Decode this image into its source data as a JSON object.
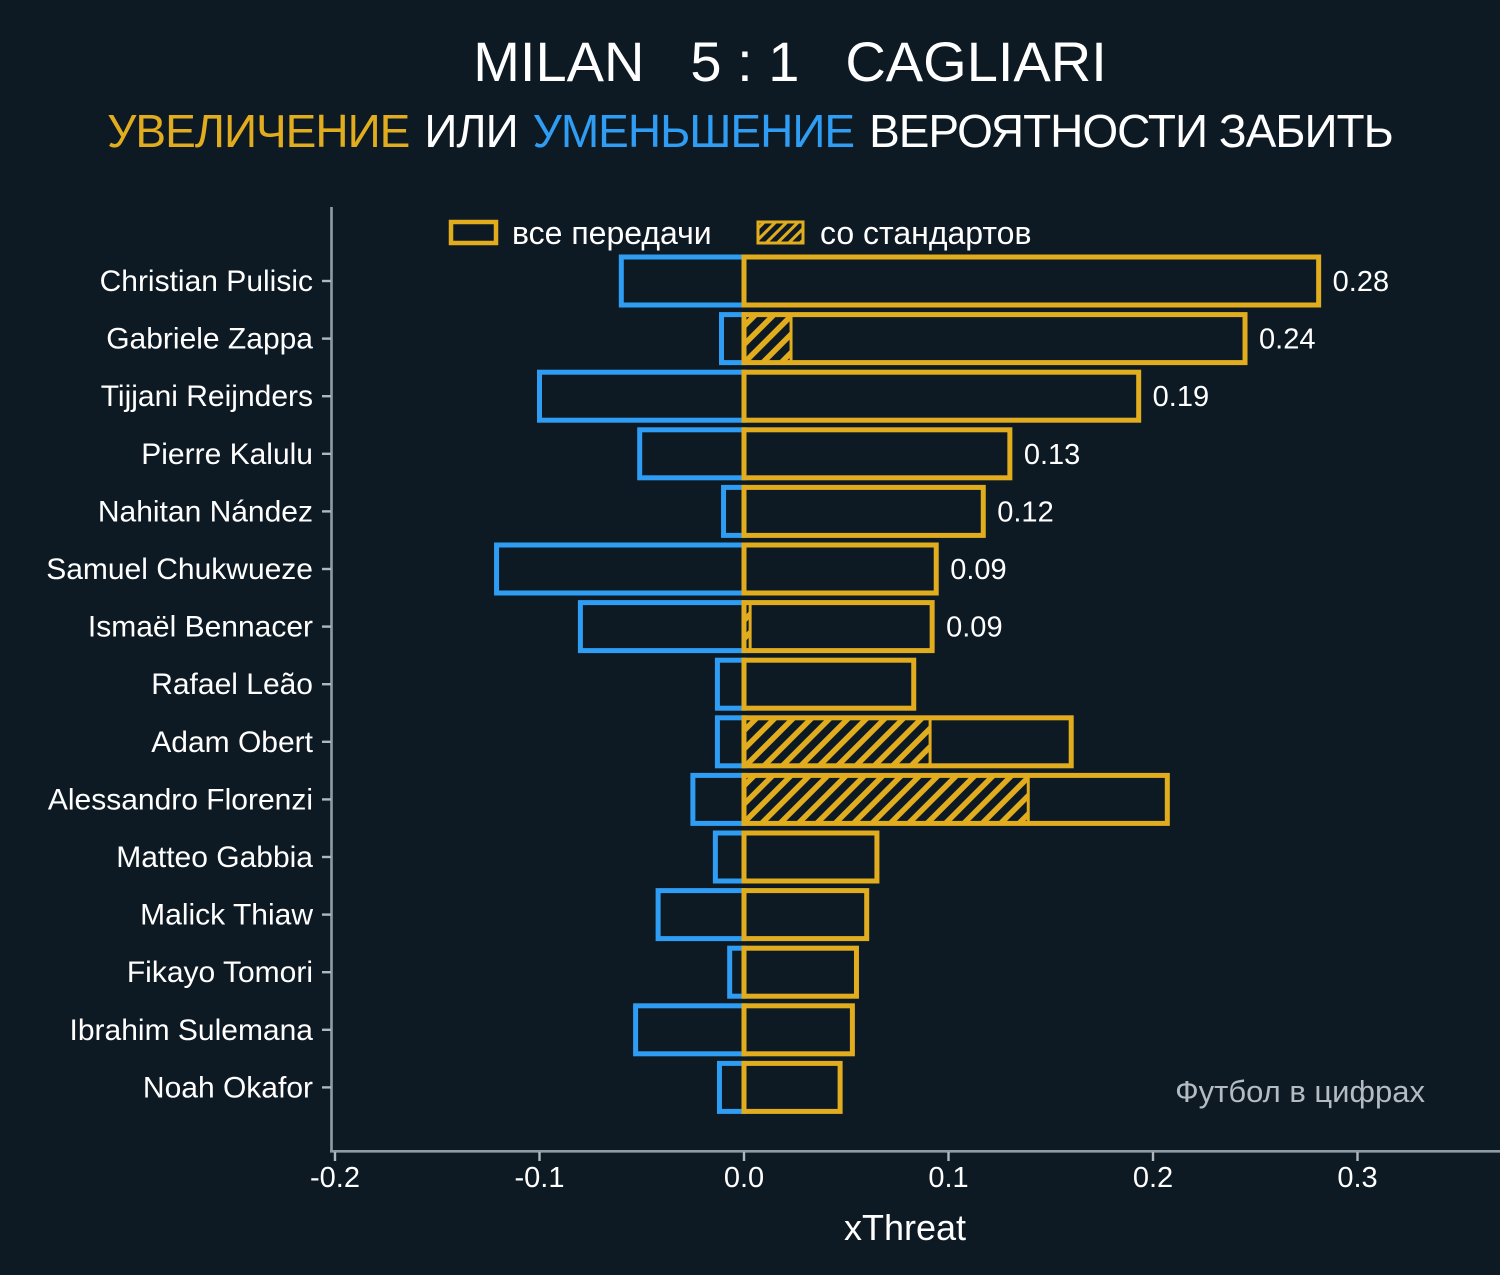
{
  "header": {
    "title": {
      "home": "MILAN",
      "score": "5 : 1",
      "away": "CAGLIARI"
    },
    "subtitle": {
      "increase_word": "УВЕЛИЧЕНИЕ",
      "or_word": "ИЛИ",
      "decrease_word": "УМЕНЬШЕНИЕ",
      "rest": "ВЕРОЯТНОСТИ ЗАБИТЬ"
    }
  },
  "legend": {
    "all_passes": "все передачи",
    "set_pieces": "со стандартов"
  },
  "watermark": "Футбол в цифрах",
  "colors": {
    "background": "#0e1a23",
    "gold": "#e1ac1e",
    "blue": "#2e9df3",
    "text": "#ffffff",
    "axis": "#8e9ca3",
    "watermark": "#b3bbc3"
  },
  "chart_data": {
    "type": "bar",
    "orientation": "horizontal",
    "title": "MILAN 5 : 1 CAGLIARI",
    "subtitle": "УВЕЛИЧЕНИЕ ИЛИ УМЕНЬШЕНИЕ ВЕРОЯТНОСТИ ЗАБИТЬ",
    "xlabel": "xThreat",
    "grid": false,
    "legend_position": "top",
    "xlim": [
      -0.202,
      0.37
    ],
    "x_ticks": [
      -0.2,
      -0.1,
      0.0,
      0.1,
      0.2,
      0.3
    ],
    "x_tick_labels": [
      "-0.2",
      "-0.1",
      "0.0",
      "0.1",
      "0.2",
      "0.3"
    ],
    "categories": [
      "Christian Pulisic",
      "Gabriele Zappa",
      "Tijjani Reijnders",
      "Pierre Kalulu",
      "Nahitan Nández",
      "Samuel Chukwueze",
      "Ismaël Bennacer",
      "Rafael Leão",
      "Adam Obert",
      "Alessandro Florenzi",
      "Matteo Gabbia",
      "Malick Thiaw",
      "Fikayo Tomori",
      "Ibrahim Sulemana",
      "Noah Okafor"
    ],
    "series": [
      {
        "name": "все передачи",
        "style": "gold-outline",
        "values": [
          0.281,
          0.245,
          0.193,
          0.13,
          0.117,
          0.094,
          0.092,
          0.083,
          0.16,
          0.207,
          0.065,
          0.06,
          0.055,
          0.053,
          0.047
        ]
      },
      {
        "name": "со стандартов",
        "style": "gold-hatched",
        "values": [
          0,
          0.023,
          0,
          0,
          0,
          0,
          0.003,
          0,
          0.091,
          0.139,
          0,
          0,
          0,
          0,
          0
        ]
      },
      {
        "name": "уменьшение",
        "style": "blue-outline",
        "values": [
          -0.06,
          -0.011,
          -0.1,
          -0.051,
          -0.01,
          -0.121,
          -0.08,
          -0.013,
          -0.013,
          -0.025,
          -0.014,
          -0.042,
          -0.007,
          -0.053,
          -0.012
        ]
      }
    ],
    "value_labels": [
      "0.28",
      "0.24",
      "0.19",
      "0.13",
      "0.12",
      "0.09",
      "0.09",
      "",
      "",
      "",
      "",
      "",
      "",
      "",
      ""
    ]
  }
}
